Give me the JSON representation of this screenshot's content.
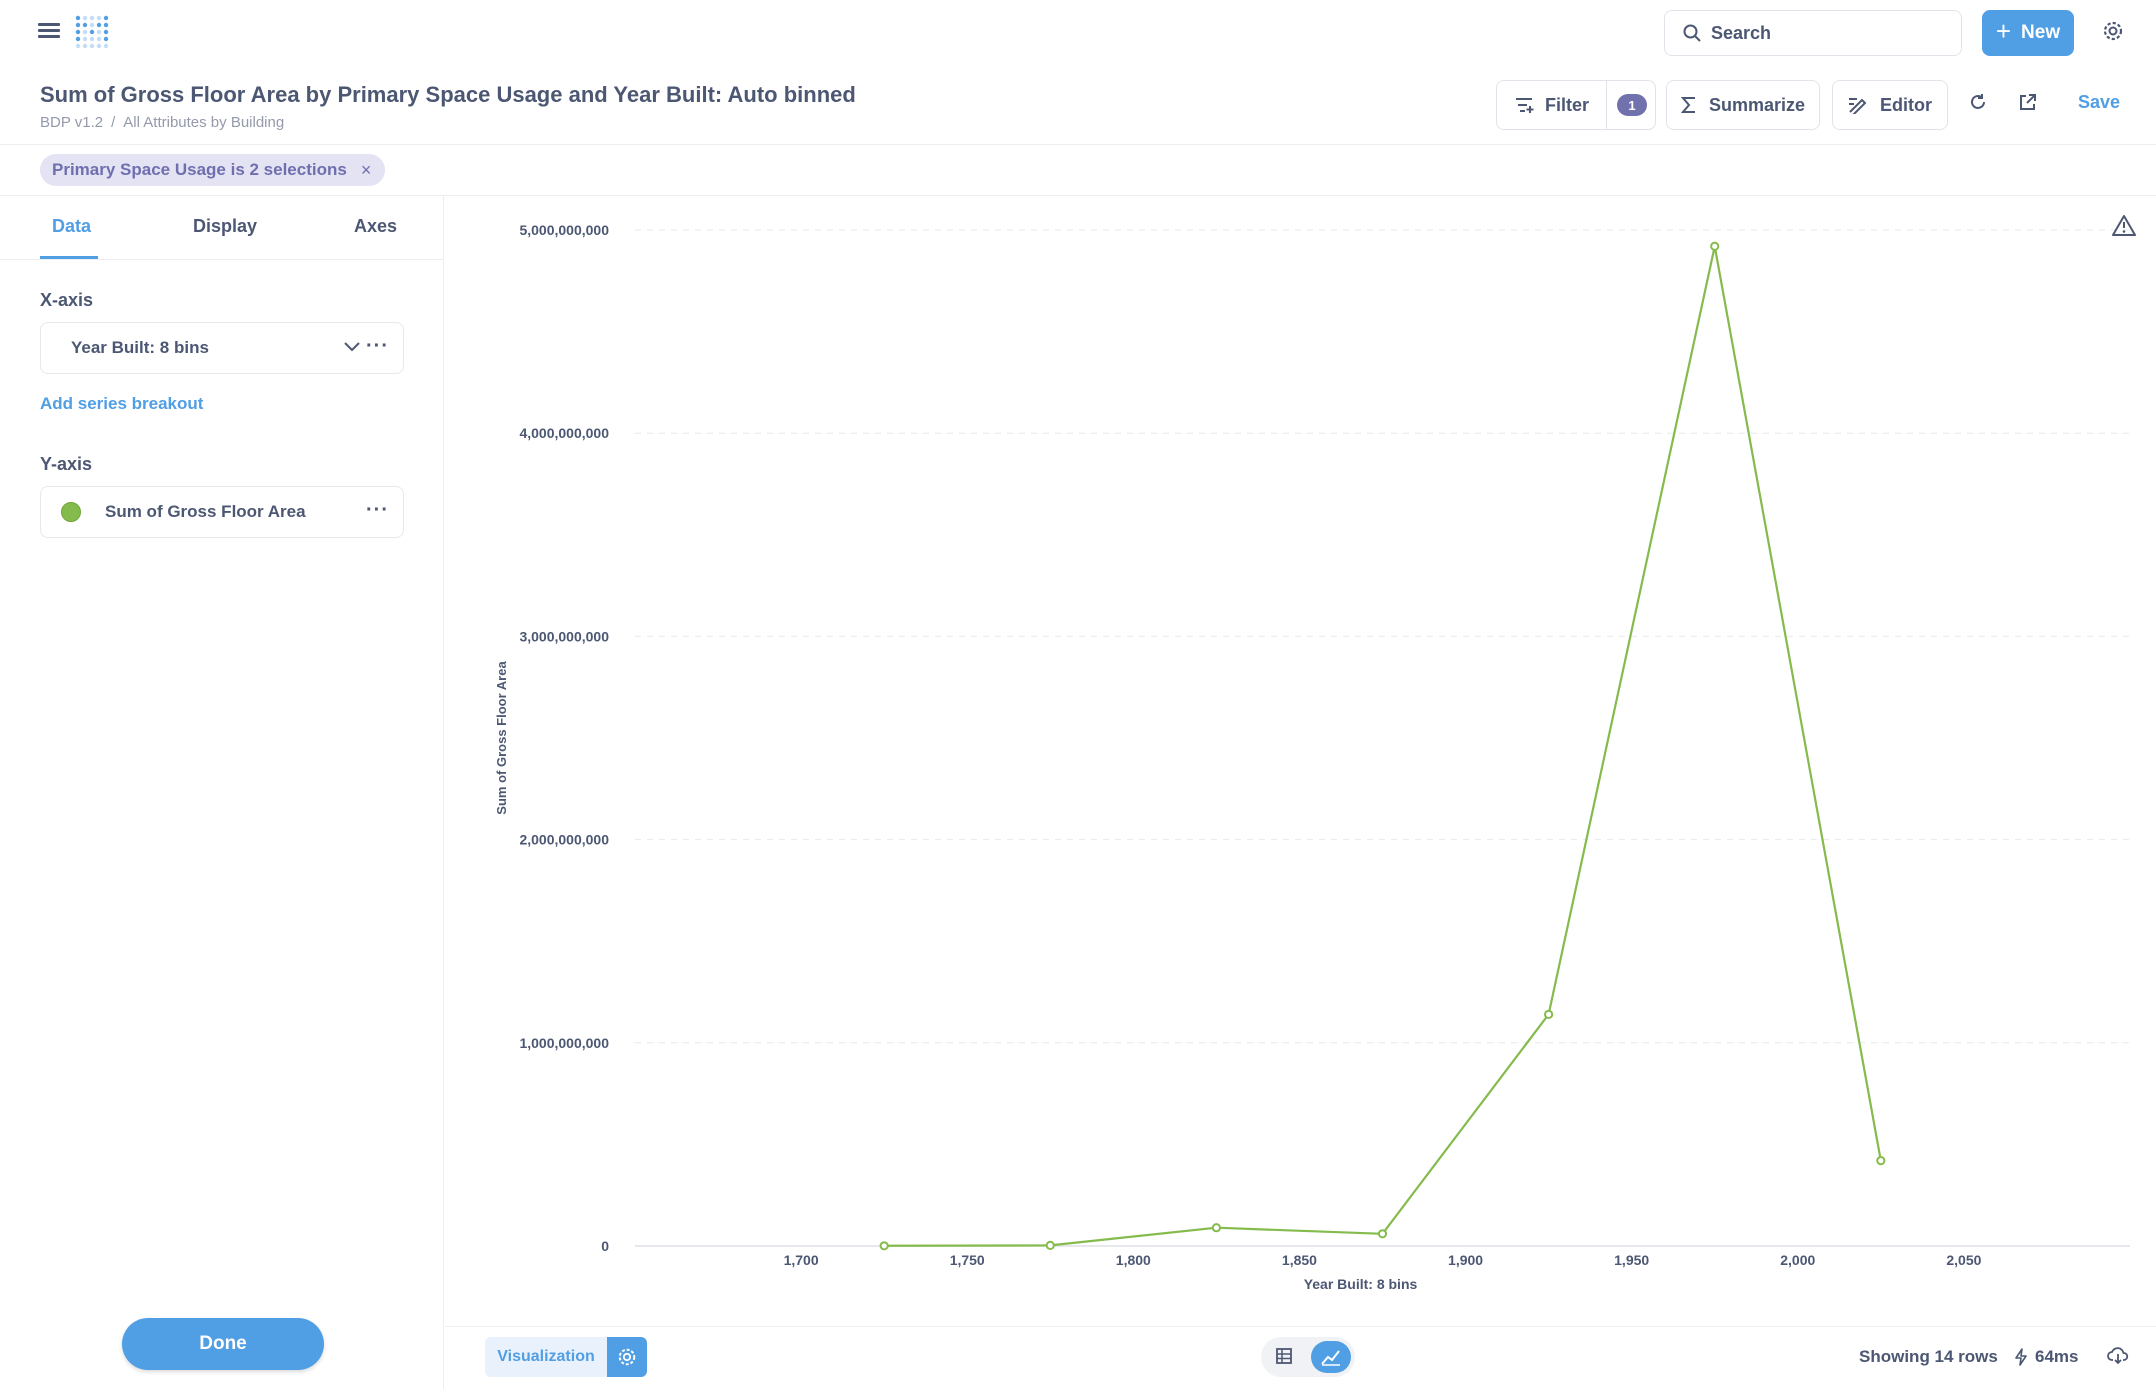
{
  "header": {
    "search_placeholder": "Search",
    "new_label": "New"
  },
  "question": {
    "title": "Sum of Gross Floor Area by Primary Space Usage and Year Built: Auto binned",
    "breadcrumb": [
      "BDP v1.2",
      "All Attributes by Building"
    ],
    "breadcrumb_sep": "/"
  },
  "toolbar": {
    "filter_label": "Filter",
    "filter_count": "1",
    "summarize_label": "Summarize",
    "editor_label": "Editor",
    "save_label": "Save"
  },
  "filter_pill": {
    "label": "Primary Space Usage is 2 selections",
    "close": "×"
  },
  "sidebar": {
    "tabs": [
      "Data",
      "Display",
      "Axes"
    ],
    "active_tab": "Data",
    "xaxis_label": "X-axis",
    "xaxis_field": "Year Built: 8 bins",
    "add_breakout": "Add series breakout",
    "yaxis_label": "Y-axis",
    "yaxis_field": "Sum of Gross Floor Area",
    "series_color": "#84bb4c",
    "more_glyph": "···",
    "done_label": "Done"
  },
  "footer": {
    "visualization_label": "Visualization",
    "rows_label": "Showing 14 rows",
    "timing": "64ms"
  },
  "chart_data": {
    "type": "line",
    "xlabel": "Year Built: 8 bins",
    "ylabel": "Sum of Gross Floor Area",
    "x_ticks": [
      1700,
      1750,
      1800,
      1850,
      1900,
      1950,
      2000,
      2050
    ],
    "y_ticks": [
      0,
      1000000000,
      2000000000,
      3000000000,
      4000000000,
      5000000000
    ],
    "x_tick_labels": [
      "1,700",
      "1,750",
      "1,800",
      "1,850",
      "1,900",
      "1,950",
      "2,000",
      "2,050"
    ],
    "y_tick_labels": [
      "0",
      "1,000,000,000",
      "2,000,000,000",
      "3,000,000,000",
      "4,000,000,000",
      "5,000,000,000"
    ],
    "xlim": [
      1650,
      2100
    ],
    "ylim": [
      0,
      5000000000
    ],
    "grid": true,
    "series": [
      {
        "color": "#84bb4c",
        "x": [
          1725,
          1775,
          1825,
          1875,
          1925,
          1975,
          2025
        ],
        "values": [
          1000000,
          3000000,
          90000000,
          60000000,
          1140000000,
          4920000000,
          420000000
        ]
      }
    ]
  }
}
